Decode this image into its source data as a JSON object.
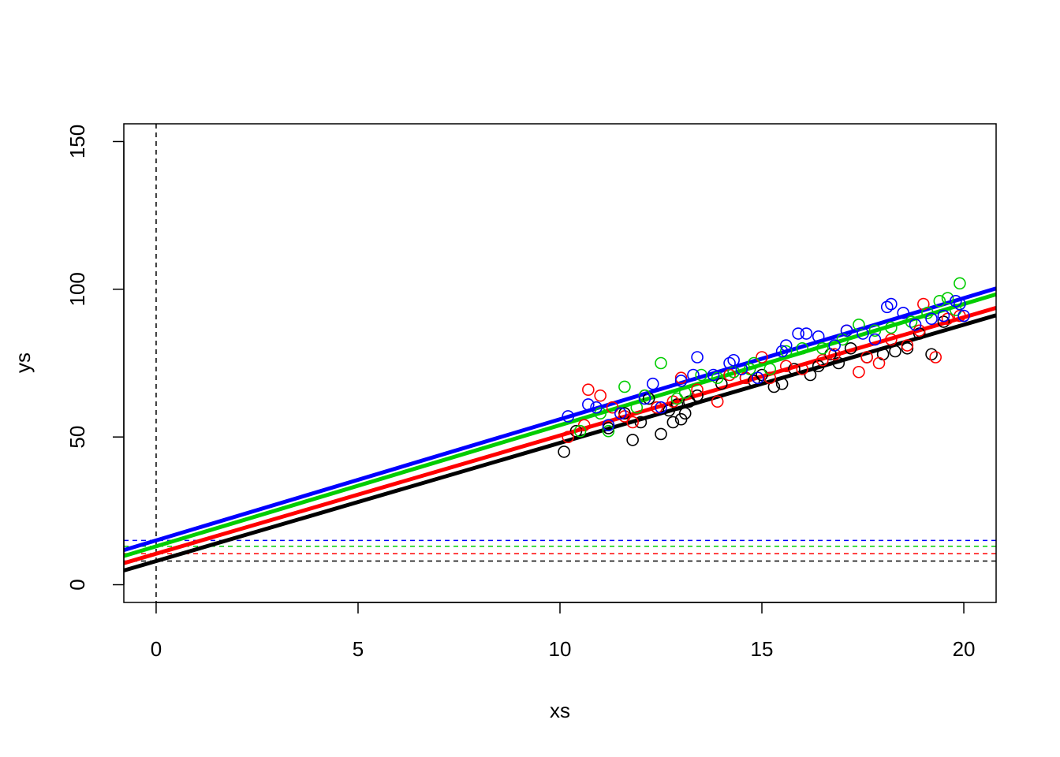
{
  "chart_data": {
    "type": "scatter",
    "xlabel": "xs",
    "ylabel": "ys",
    "xlim": [
      -0.8,
      20.8
    ],
    "ylim": [
      -6,
      156
    ],
    "x_ticks": [
      0,
      5,
      10,
      15,
      20
    ],
    "y_ticks": [
      0,
      50,
      100,
      150
    ],
    "grid": false,
    "vertical_reference": {
      "x": 0,
      "color": "#000000",
      "style": "dashed"
    },
    "series": [
      {
        "color": "#000000",
        "intercept": 8,
        "slope": 4.0,
        "points": [
          [
            10.1,
            45
          ],
          [
            10.4,
            52
          ],
          [
            11.2,
            53
          ],
          [
            11.6,
            58
          ],
          [
            11.8,
            49
          ],
          [
            12.0,
            55
          ],
          [
            12.2,
            63
          ],
          [
            12.4,
            60
          ],
          [
            12.5,
            51
          ],
          [
            12.7,
            59
          ],
          [
            12.8,
            55
          ],
          [
            12.9,
            61
          ],
          [
            13.0,
            56
          ],
          [
            13.1,
            58
          ],
          [
            13.2,
            62
          ],
          [
            13.4,
            64
          ],
          [
            14.0,
            68
          ],
          [
            14.3,
            72
          ],
          [
            14.6,
            70
          ],
          [
            14.8,
            69
          ],
          [
            15.0,
            71
          ],
          [
            15.3,
            67
          ],
          [
            15.5,
            68
          ],
          [
            15.8,
            73
          ],
          [
            16.2,
            71
          ],
          [
            16.4,
            74
          ],
          [
            16.7,
            78
          ],
          [
            16.9,
            75
          ],
          [
            17.2,
            80
          ],
          [
            17.6,
            77
          ],
          [
            18.0,
            78
          ],
          [
            18.3,
            79
          ],
          [
            18.6,
            80
          ],
          [
            18.9,
            85
          ],
          [
            19.2,
            78
          ],
          [
            19.5,
            89
          ]
        ]
      },
      {
        "color": "#ff0000",
        "intercept": 10.5,
        "slope": 4.0,
        "points": [
          [
            10.2,
            50
          ],
          [
            10.6,
            54
          ],
          [
            10.7,
            66
          ],
          [
            11.0,
            64
          ],
          [
            11.3,
            60
          ],
          [
            11.6,
            57
          ],
          [
            11.8,
            55
          ],
          [
            12.1,
            64
          ],
          [
            12.4,
            60
          ],
          [
            12.8,
            62
          ],
          [
            13.0,
            70
          ],
          [
            13.4,
            66
          ],
          [
            13.9,
            62
          ],
          [
            14.2,
            71
          ],
          [
            14.6,
            70
          ],
          [
            15.0,
            77
          ],
          [
            15.2,
            70
          ],
          [
            15.6,
            74
          ],
          [
            16.0,
            73
          ],
          [
            16.5,
            76
          ],
          [
            16.8,
            78
          ],
          [
            17.1,
            86
          ],
          [
            17.4,
            72
          ],
          [
            17.6,
            77
          ],
          [
            17.9,
            75
          ],
          [
            18.2,
            83
          ],
          [
            18.6,
            81
          ],
          [
            18.9,
            86
          ],
          [
            19.0,
            95
          ],
          [
            19.3,
            77
          ],
          [
            19.6,
            90
          ],
          [
            19.9,
            91
          ]
        ]
      },
      {
        "color": "#00cd00",
        "intercept": 13,
        "slope": 4.1,
        "points": [
          [
            10.5,
            52
          ],
          [
            11.0,
            58
          ],
          [
            11.2,
            52
          ],
          [
            11.6,
            67
          ],
          [
            11.9,
            60
          ],
          [
            12.1,
            64
          ],
          [
            12.5,
            75
          ],
          [
            12.9,
            63
          ],
          [
            13.1,
            65
          ],
          [
            13.5,
            71
          ],
          [
            13.9,
            70
          ],
          [
            14.3,
            72
          ],
          [
            14.7,
            73
          ],
          [
            14.8,
            75
          ],
          [
            15.2,
            73
          ],
          [
            15.6,
            79
          ],
          [
            16.0,
            80
          ],
          [
            16.5,
            80
          ],
          [
            17.0,
            83
          ],
          [
            17.4,
            88
          ],
          [
            17.8,
            86
          ],
          [
            18.2,
            87
          ],
          [
            18.7,
            89
          ],
          [
            19.1,
            92
          ],
          [
            19.4,
            96
          ],
          [
            19.6,
            97
          ],
          [
            19.8,
            93
          ],
          [
            19.9,
            102
          ]
        ]
      },
      {
        "color": "#0000ff",
        "intercept": 15,
        "slope": 4.1,
        "points": [
          [
            10.2,
            57
          ],
          [
            10.7,
            61
          ],
          [
            10.9,
            60
          ],
          [
            11.2,
            54
          ],
          [
            11.5,
            58
          ],
          [
            12.1,
            63
          ],
          [
            12.3,
            68
          ],
          [
            12.5,
            60
          ],
          [
            13.0,
            69
          ],
          [
            13.3,
            71
          ],
          [
            13.4,
            77
          ],
          [
            13.8,
            71
          ],
          [
            14.2,
            75
          ],
          [
            14.3,
            76
          ],
          [
            14.5,
            73
          ],
          [
            14.9,
            70
          ],
          [
            15.5,
            79
          ],
          [
            15.6,
            81
          ],
          [
            15.9,
            85
          ],
          [
            16.1,
            85
          ],
          [
            16.4,
            84
          ],
          [
            16.8,
            81
          ],
          [
            17.1,
            86
          ],
          [
            17.5,
            85
          ],
          [
            17.8,
            83
          ],
          [
            18.1,
            94
          ],
          [
            18.2,
            95
          ],
          [
            18.5,
            92
          ],
          [
            18.8,
            88
          ],
          [
            19.2,
            90
          ],
          [
            19.5,
            91
          ],
          [
            19.8,
            96
          ],
          [
            19.9,
            95
          ],
          [
            20.0,
            91
          ]
        ]
      }
    ]
  }
}
